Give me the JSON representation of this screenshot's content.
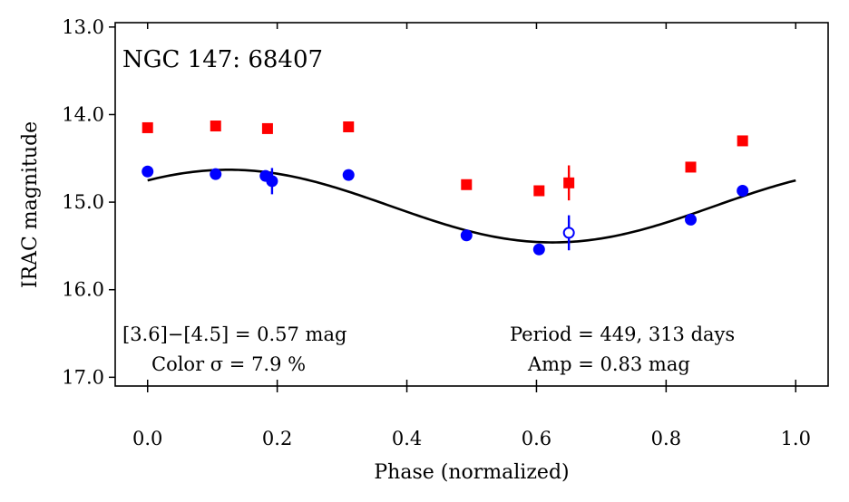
{
  "chart_data": {
    "type": "scatter",
    "title": "NGC 147:  68407",
    "xlabel": "Phase (normalized)",
    "ylabel": "IRAC magnitude",
    "xlim": [
      -0.05,
      1.05
    ],
    "ylim": [
      17.1,
      12.95
    ],
    "y_inverted": true,
    "x_ticks": [
      0.0,
      0.2,
      0.4,
      0.6,
      0.8,
      1.0
    ],
    "x_tick_labels": [
      "0.0",
      "0.2",
      "0.4",
      "0.6",
      "0.8",
      "1.0"
    ],
    "y_ticks": [
      13.0,
      14.0,
      15.0,
      16.0,
      17.0
    ],
    "y_tick_labels": [
      "13.0",
      "14.0",
      "15.0",
      "16.0",
      "17.0"
    ],
    "grid": false,
    "series": [
      {
        "marker": "square",
        "color": "#ff0000",
        "points": [
          {
            "x": 0.0,
            "y": 14.15
          },
          {
            "x": 0.105,
            "y": 14.13
          },
          {
            "x": 0.185,
            "y": 14.16,
            "yerr": 0.05
          },
          {
            "x": 0.31,
            "y": 14.14
          },
          {
            "x": 0.492,
            "y": 14.8
          },
          {
            "x": 0.604,
            "y": 14.87
          },
          {
            "x": 0.65,
            "y": 14.78,
            "yerr": 0.2
          },
          {
            "x": 0.838,
            "y": 14.6
          },
          {
            "x": 0.918,
            "y": 14.3
          }
        ]
      },
      {
        "marker": "circle",
        "color": "#0000ff",
        "points": [
          {
            "x": 0.0,
            "y": 14.65
          },
          {
            "x": 0.105,
            "y": 14.68
          },
          {
            "x": 0.182,
            "y": 14.7
          },
          {
            "x": 0.192,
            "y": 14.76,
            "yerr": 0.15
          },
          {
            "x": 0.31,
            "y": 14.69
          },
          {
            "x": 0.492,
            "y": 15.38
          },
          {
            "x": 0.604,
            "y": 15.54
          },
          {
            "x": 0.65,
            "y": 15.35,
            "yerr": 0.2,
            "open": true
          },
          {
            "x": 0.838,
            "y": 15.2
          },
          {
            "x": 0.918,
            "y": 14.87
          }
        ]
      }
    ],
    "fit": {
      "type": "sine",
      "color": "#000000",
      "mean": 15.045,
      "half_amplitude": 0.415,
      "phase_of_min_brightness": 0.625,
      "x_range": [
        0.0,
        1.0
      ]
    },
    "annotations": {
      "color_text": "[3.6]−[4.5] = 0.57 mag",
      "color_sigma_text": "Color σ = 7.9 %",
      "period_text": "Period = 449, 313 days",
      "amp_text": "Amp = 0.83 mag"
    }
  }
}
